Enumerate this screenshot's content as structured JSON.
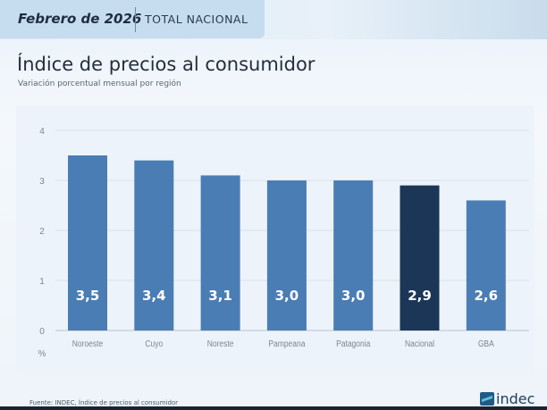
{
  "header": {
    "date": "Febrero de 2026",
    "scope": "TOTAL NACIONAL"
  },
  "title": "Índice de precios al consumidor",
  "subtitle": "Variación porcentual mensual por región",
  "footer": {
    "source": "Fuente: INDEC, Índice de precios al consumidor",
    "logo": "indec"
  },
  "chart_data": {
    "type": "bar",
    "categories": [
      "Noroeste",
      "Cuyo",
      "Noreste",
      "Pampeana",
      "Patagonia",
      "Nacional",
      "GBA"
    ],
    "values": [
      3.5,
      3.4,
      3.1,
      3.0,
      3.0,
      2.9,
      2.6
    ],
    "data_labels": [
      "3,5",
      "3,4",
      "3,1",
      "3,0",
      "3,0",
      "2,9",
      "2,6"
    ],
    "ylabel": "%",
    "ylim": [
      0,
      4
    ],
    "yticks": [
      "0",
      "1",
      "2",
      "3",
      "4"
    ],
    "grid": true,
    "colors": {
      "default": "#4a7db4",
      "highlight": "#1b3656",
      "highlight_category": "Nacional",
      "label": "#ffffff"
    }
  }
}
